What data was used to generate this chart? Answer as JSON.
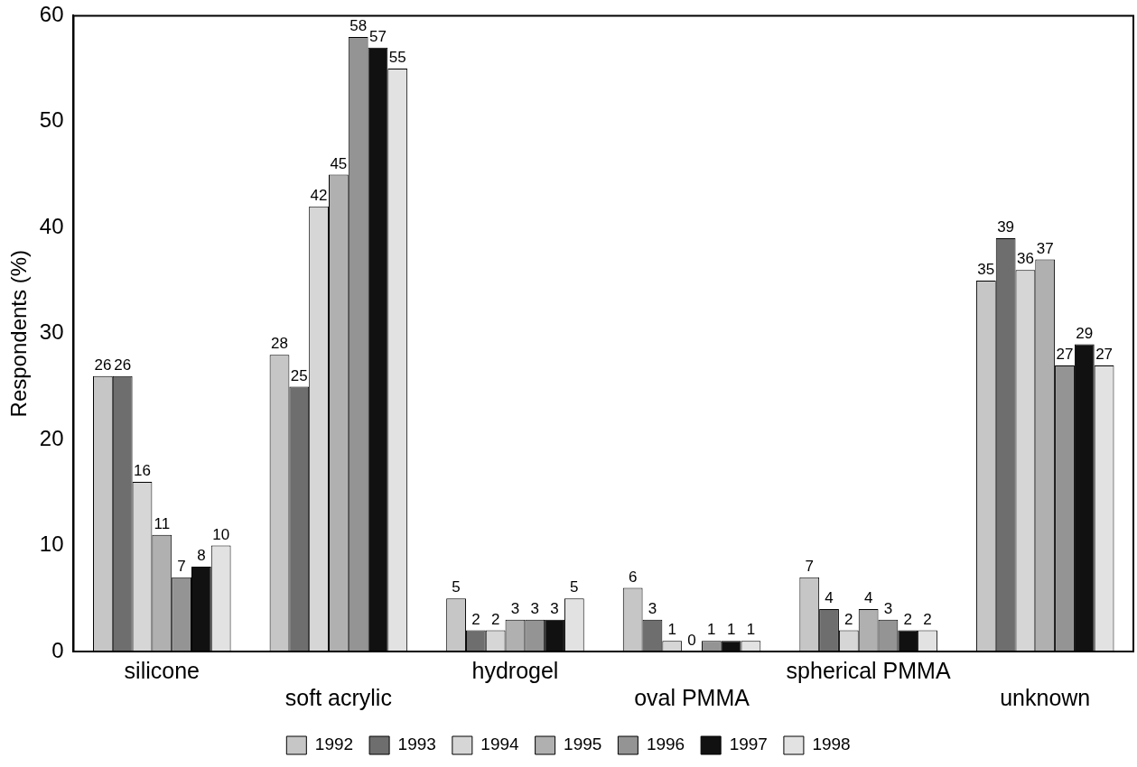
{
  "chart_data": {
    "type": "bar",
    "ylabel": "Respondents (%)",
    "categories": [
      "silicone",
      "soft acrylic",
      "hydrogel",
      "oval PMMA",
      "spherical PMMA",
      "unknown"
    ],
    "series": [
      {
        "name": "1992",
        "color": "#c6c6c6",
        "values": [
          26,
          28,
          5,
          6,
          7,
          35
        ]
      },
      {
        "name": "1993",
        "color": "#6e6e6e",
        "values": [
          26,
          25,
          2,
          3,
          4,
          39
        ]
      },
      {
        "name": "1994",
        "color": "#d6d6d6",
        "values": [
          16,
          42,
          2,
          1,
          2,
          36
        ]
      },
      {
        "name": "1995",
        "color": "#b0b0b0",
        "values": [
          11,
          45,
          3,
          0,
          4,
          37
        ]
      },
      {
        "name": "1996",
        "color": "#949494",
        "values": [
          7,
          58,
          3,
          1,
          3,
          27
        ]
      },
      {
        "name": "1997",
        "color": "#111111",
        "values": [
          8,
          57,
          3,
          1,
          2,
          29
        ]
      },
      {
        "name": "1998",
        "color": "#e2e2e2",
        "values": [
          10,
          55,
          5,
          1,
          2,
          27
        ]
      }
    ],
    "ylim": [
      0,
      60
    ],
    "yticks": [
      0,
      10,
      20,
      30,
      40,
      50,
      60
    ],
    "grid": false,
    "legend": "bottom",
    "data_labels": true
  }
}
